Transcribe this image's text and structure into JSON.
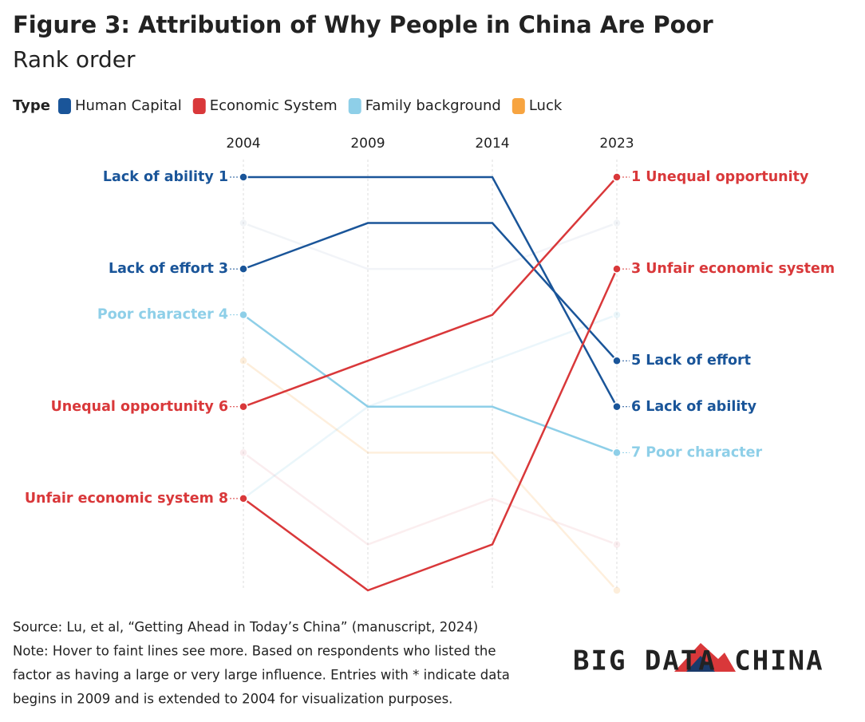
{
  "chart_data": {
    "type": "bump",
    "title": "Figure 3: Attribution of Why People in China Are Poor",
    "subtitle": "Rank order",
    "legend_title": "Type",
    "legend": [
      {
        "name": "Human Capital",
        "color": "#1a5599"
      },
      {
        "name": "Economic System",
        "color": "#d9383a"
      },
      {
        "name": "Family background",
        "color": "#8ecfe8"
      },
      {
        "name": "Luck",
        "color": "#f7a440"
      }
    ],
    "categories": [
      "2004",
      "2009",
      "2014",
      "2023"
    ],
    "ylim": [
      1,
      10
    ],
    "y_inverted": true,
    "series": [
      {
        "color": "#b8c4d8",
        "faint": true,
        "values": [
          2,
          3,
          3,
          2
        ]
      },
      {
        "color": "#f7a440",
        "faint": true,
        "values": [
          5,
          7,
          7,
          10
        ]
      },
      {
        "color": "#e8a0a8",
        "faint": true,
        "values": [
          7,
          9,
          8,
          9
        ]
      },
      {
        "color": "#8ecfe8",
        "faint": true,
        "values": [
          8,
          6,
          5,
          4
        ]
      },
      {
        "name": "Lack of ability",
        "color": "#1a5599",
        "values": [
          1,
          1,
          1,
          6
        ]
      },
      {
        "name": "Lack of effort",
        "color": "#1a5599",
        "values": [
          3,
          2,
          2,
          5
        ]
      },
      {
        "name": "Poor character",
        "color": "#8ecfe8",
        "values": [
          4,
          6,
          6,
          7
        ]
      },
      {
        "name": "Unequal opportunity",
        "color": "#d9383a",
        "values": [
          6,
          5,
          4,
          1
        ]
      },
      {
        "name": "Unfair economic system",
        "color": "#d9383a",
        "values": [
          8,
          10,
          9,
          3
        ]
      }
    ],
    "source": "Source: Lu, et al, “Getting Ahead in Today’s China” (manuscript, 2024)",
    "notes": [
      "Note: Hover to faint lines see more. Based on respondents who listed the",
      "factor as having a large or very large influence. Entries with * indicate data",
      "begins in 2009 and is extended to 2004 for visualization purposes."
    ],
    "logo": "BIG DATA CHINA"
  }
}
